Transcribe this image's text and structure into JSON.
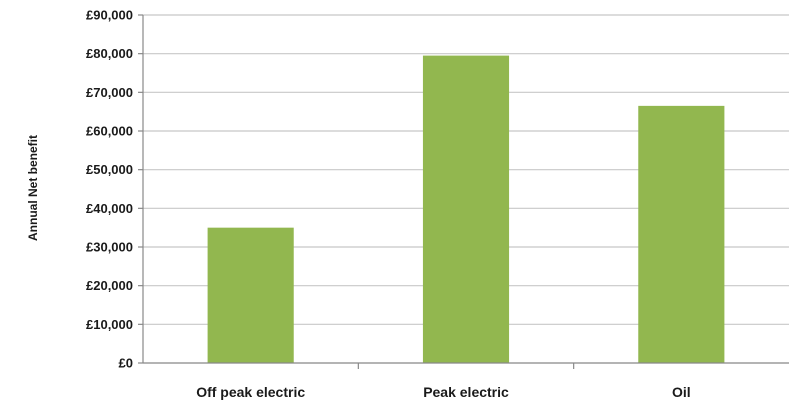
{
  "chart_data": {
    "type": "bar",
    "title": "",
    "xlabel": "",
    "ylabel": "Annual Net benefit",
    "categories": [
      "Off peak electric",
      "Peak electric",
      "Oil"
    ],
    "values": [
      35000,
      79500,
      66500
    ],
    "ylim": [
      0,
      90000
    ],
    "yticks": [
      0,
      10000,
      20000,
      30000,
      40000,
      50000,
      60000,
      70000,
      80000,
      90000
    ],
    "ytick_labels": [
      "£0",
      "£10,000",
      "£20,000",
      "£30,000",
      "£40,000",
      "£50,000",
      "£60,000",
      "£70,000",
      "£80,000",
      "£90,000"
    ],
    "grid": true,
    "legend": "none",
    "colors": {
      "bar": "#92b74f",
      "grid": "#c8c8c8",
      "axis": "#888888"
    }
  }
}
